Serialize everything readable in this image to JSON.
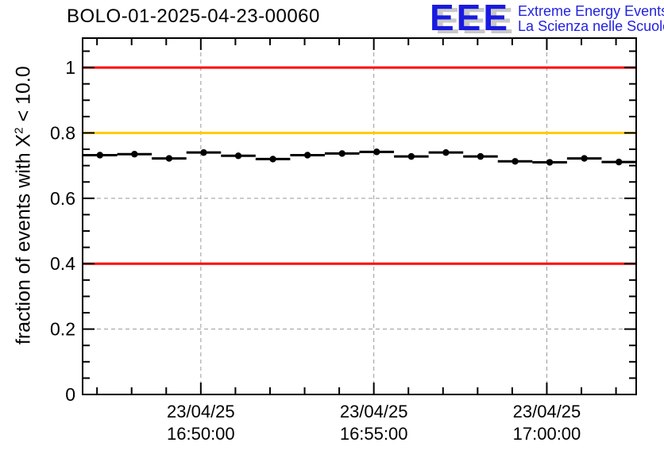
{
  "header": {
    "title": "BOLO-01-2025-04-23-00060"
  },
  "logo": {
    "acronym": "EEE",
    "line1": "Extreme Energy Events",
    "line2": "La Scienza nelle Scuole",
    "letters_color": "#1a1ae0",
    "shadow_color": "#c8c8c8",
    "text_color": "#2323e0"
  },
  "axes": {
    "y_title_pre": "fraction of events with X",
    "y_title_sup": "2",
    "y_title_post": " < 10.0"
  },
  "chart_data": {
    "type": "scatter",
    "title": "BOLO-01-2025-04-23-00060",
    "xlabel": "",
    "ylabel": "fraction of events with X^2 < 10.0",
    "grid": true,
    "grid_color": "#999999",
    "frame_color": "#000000",
    "marker_color": "#000000",
    "x_date": "23/04/25",
    "x_range": [
      "16:46:35",
      "17:02:35"
    ],
    "y_range": [
      0,
      1.09
    ],
    "x_minor_step_sec": 60,
    "y_minor_step": 0.05,
    "x_major_ticks": [
      {
        "time": "16:50:00",
        "label": [
          "23/04/25",
          "16:50:00"
        ]
      },
      {
        "time": "16:55:00",
        "label": [
          "23/04/25",
          "16:55:00"
        ]
      },
      {
        "time": "17:00:00",
        "label": [
          "23/04/25",
          "17:00:00"
        ]
      }
    ],
    "y_major_ticks": [
      {
        "value": 0,
        "label": "0"
      },
      {
        "value": 0.2,
        "label": "0.2"
      },
      {
        "value": 0.4,
        "label": "0.4"
      },
      {
        "value": 0.6,
        "label": "0.6"
      },
      {
        "value": 0.8,
        "label": "0.8"
      },
      {
        "value": 1,
        "label": "1"
      }
    ],
    "reference_lines": [
      {
        "value": 1.0,
        "color": "#ff0000"
      },
      {
        "value": 0.8,
        "color": "#ffcc00"
      },
      {
        "value": 0.4,
        "color": "#ff0000"
      }
    ],
    "bin_width_sec": 60,
    "points": [
      {
        "time": "16:47:05",
        "value": 0.732
      },
      {
        "time": "16:48:05",
        "value": 0.735
      },
      {
        "time": "16:49:05",
        "value": 0.722
      },
      {
        "time": "16:50:05",
        "value": 0.74
      },
      {
        "time": "16:51:05",
        "value": 0.73
      },
      {
        "time": "16:52:05",
        "value": 0.72
      },
      {
        "time": "16:53:05",
        "value": 0.732
      },
      {
        "time": "16:54:05",
        "value": 0.737
      },
      {
        "time": "16:55:05",
        "value": 0.742
      },
      {
        "time": "16:56:05",
        "value": 0.728
      },
      {
        "time": "16:57:05",
        "value": 0.74
      },
      {
        "time": "16:58:05",
        "value": 0.728
      },
      {
        "time": "16:59:05",
        "value": 0.713
      },
      {
        "time": "17:00:05",
        "value": 0.71
      },
      {
        "time": "17:01:05",
        "value": 0.722
      },
      {
        "time": "17:02:05",
        "value": 0.711
      }
    ]
  }
}
